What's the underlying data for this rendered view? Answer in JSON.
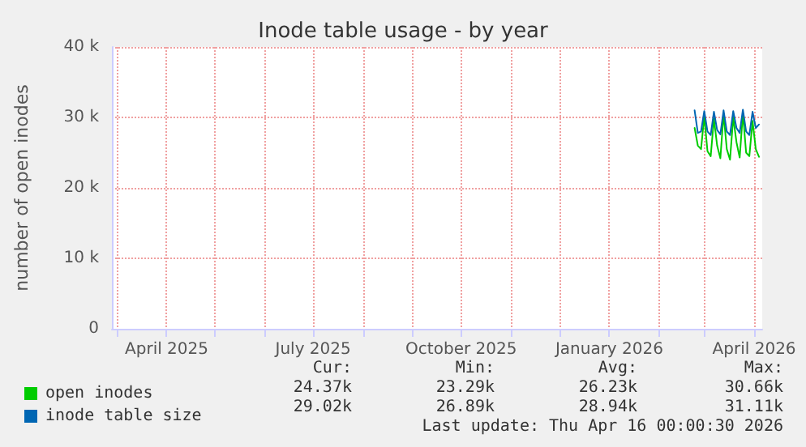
{
  "chart_data": {
    "type": "line",
    "title": "Inode table usage - by year",
    "ylabel": "number of open inodes",
    "xlim": [
      "2025-02-26",
      "2026-04-06"
    ],
    "xticks": [
      {
        "value": "2025-03-01",
        "label": null
      },
      {
        "value": "2025-04-01",
        "label": "April 2025"
      },
      {
        "value": "2025-05-01",
        "label": null
      },
      {
        "value": "2025-06-01",
        "label": null
      },
      {
        "value": "2025-07-01",
        "label": "July 2025"
      },
      {
        "value": "2025-08-01",
        "label": null
      },
      {
        "value": "2025-09-01",
        "label": null
      },
      {
        "value": "2025-10-01",
        "label": "October 2025"
      },
      {
        "value": "2025-11-01",
        "label": null
      },
      {
        "value": "2025-12-01",
        "label": null
      },
      {
        "value": "2026-01-01",
        "label": "January 2026"
      },
      {
        "value": "2026-02-01",
        "label": null
      },
      {
        "value": "2026-03-01",
        "label": null
      },
      {
        "value": "2026-04-01",
        "label": "April 2026"
      }
    ],
    "ylim": [
      0,
      40000
    ],
    "yticks": [
      0,
      {
        "value": 10000,
        "label": "10 k"
      },
      {
        "value": 20000,
        "label": "20 k"
      },
      {
        "value": 30000,
        "label": "30 k"
      },
      {
        "value": 40000,
        "label": "40 k"
      }
    ],
    "x": [
      "2026-02-23",
      "2026-02-25",
      "2026-02-27",
      "2026-03-01",
      "2026-03-03",
      "2026-03-05",
      "2026-03-07",
      "2026-03-09",
      "2026-03-11",
      "2026-03-13",
      "2026-03-15",
      "2026-03-17",
      "2026-03-19",
      "2026-03-21",
      "2026-03-23",
      "2026-03-25",
      "2026-03-27",
      "2026-03-29",
      "2026-03-31",
      "2026-04-02",
      "2026-04-04"
    ],
    "series": [
      {
        "name": "open inodes",
        "color": "#00cc00",
        "values": [
          28500,
          26000,
          25500,
          30200,
          25200,
          24500,
          29800,
          26000,
          24200,
          30500,
          25500,
          24000,
          30000,
          26500,
          24300,
          30600,
          25000,
          24500,
          29500,
          25500,
          24400
        ]
      },
      {
        "name": "inode table size",
        "color": "#0066b3",
        "values": [
          31000,
          27800,
          28000,
          30900,
          28000,
          27500,
          30800,
          28200,
          27600,
          31000,
          28000,
          27500,
          30900,
          28500,
          27800,
          31100,
          28000,
          27500,
          30800,
          28500,
          29000
        ]
      }
    ],
    "grid": true,
    "legend": "bottom left",
    "marker": "none",
    "line_style": "solid",
    "annotations": [
      "Cur:",
      "Min:",
      "Avg:",
      "Max:",
      "24.37k",
      "23.29k",
      "26.23k",
      "30.66k",
      "29.02k",
      "26.89k",
      "28.94k",
      "31.11k",
      "Last update: Thu Apr 16 00:00:30 2026"
    ]
  }
}
